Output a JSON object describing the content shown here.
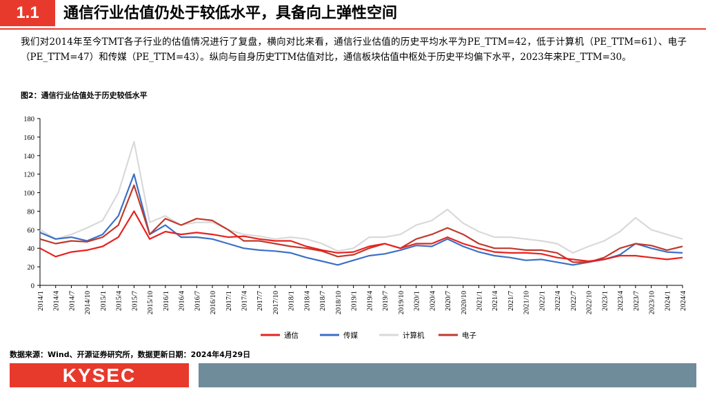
{
  "header": {
    "section_number": "1.1",
    "title": "通信行业估值仍处于较低水平，具备向上弹性空间"
  },
  "paragraph": "我们对2014年至今TMT各子行业的估值情况进行了复盘，横向对比来看，通信行业估值的历史平均水平为PE_TTM=42，低于计算机（PE_TTM=61）、电子（PE_TTM=47）和传媒（PE_TTM=43）。纵向与自身历史TTM估值对比，通信板块估值中枢处于历史平均偏下水平，2023年来PE_TTM=30。",
  "figure_title": "图2：通信行业估值处于历史较低水平",
  "source": "数据来源：Wind、开源证券研究所，数据更新日期：2024年4月29日",
  "logo_text": "KYSEC",
  "colors": {
    "accent": "#e8392d",
    "footer_bar": "#6f8c9b"
  },
  "chart_data": {
    "type": "line",
    "title": "通信行业估值处于历史较低水平",
    "ylim": [
      0,
      180
    ],
    "yticks": [
      0,
      20,
      40,
      60,
      80,
      100,
      120,
      140,
      160,
      180
    ],
    "legend_position": "bottom-center",
    "categories": [
      "2014/1",
      "2014/4",
      "2014/7",
      "2014/10",
      "2015/1",
      "2015/4",
      "2015/7",
      "2015/10",
      "2016/1",
      "2016/4",
      "2016/7",
      "2016/10",
      "2017/1",
      "2017/4",
      "2017/7",
      "2017/10",
      "2018/1",
      "2018/4",
      "2018/7",
      "2018/10",
      "2019/1",
      "2019/4",
      "2019/7",
      "2019/10",
      "2020/1",
      "2020/4",
      "2020/7",
      "2020/10",
      "2021/1",
      "2021/4",
      "2021/7",
      "2021/10",
      "2022/1",
      "2022/4",
      "2022/7",
      "2022/10",
      "2023/1",
      "2023/4",
      "2023/7",
      "2023/10",
      "2024/1",
      "2024/4"
    ],
    "series": [
      {
        "name": "通信",
        "color": "#e8211d",
        "values": [
          40,
          31,
          36,
          38,
          42,
          52,
          80,
          50,
          58,
          55,
          57,
          55,
          52,
          53,
          50,
          48,
          48,
          42,
          38,
          35,
          36,
          42,
          45,
          40,
          45,
          45,
          52,
          45,
          40,
          36,
          35,
          35,
          34,
          30,
          28,
          26,
          28,
          32,
          32,
          30,
          28,
          30
        ]
      },
      {
        "name": "传媒",
        "color": "#3b6fc7",
        "values": [
          57,
          50,
          52,
          48,
          55,
          75,
          120,
          55,
          65,
          52,
          52,
          50,
          45,
          40,
          38,
          37,
          35,
          30,
          26,
          22,
          27,
          32,
          34,
          38,
          43,
          42,
          50,
          42,
          36,
          32,
          30,
          27,
          28,
          25,
          22,
          25,
          28,
          33,
          45,
          40,
          36,
          35
        ]
      },
      {
        "name": "计算机",
        "color": "#d9d9d9",
        "values": [
          60,
          50,
          55,
          62,
          70,
          100,
          155,
          68,
          75,
          65,
          68,
          68,
          60,
          55,
          53,
          50,
          52,
          50,
          45,
          37,
          40,
          52,
          52,
          55,
          65,
          70,
          82,
          67,
          58,
          52,
          52,
          50,
          48,
          45,
          35,
          42,
          48,
          58,
          73,
          60,
          55,
          50
        ]
      },
      {
        "name": "电子",
        "color": "#c0392b",
        "values": [
          50,
          45,
          48,
          47,
          52,
          65,
          108,
          55,
          72,
          65,
          72,
          70,
          60,
          48,
          48,
          45,
          42,
          40,
          37,
          31,
          33,
          40,
          45,
          40,
          50,
          55,
          62,
          55,
          45,
          40,
          40,
          38,
          38,
          35,
          25,
          25,
          30,
          40,
          45,
          43,
          38,
          42
        ]
      }
    ]
  }
}
